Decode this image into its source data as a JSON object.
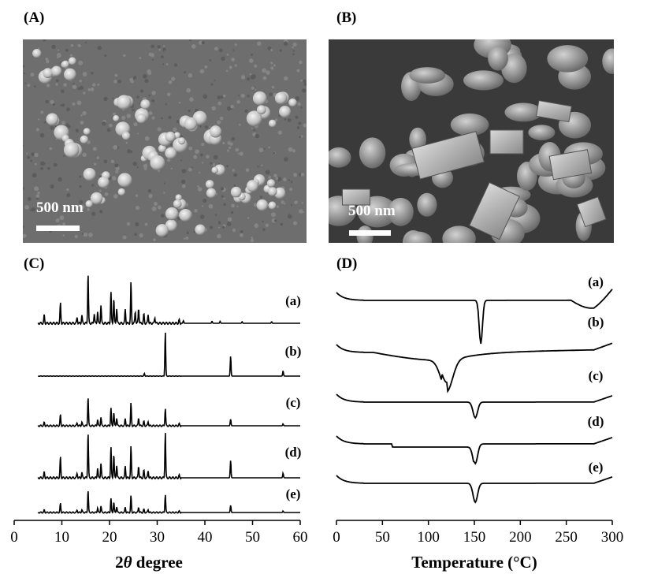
{
  "panels": {
    "A": {
      "label": "(A)",
      "scale_text": "500 nm"
    },
    "B": {
      "label": "(B)",
      "scale_text": "500 nm"
    },
    "C": {
      "label": "(C)"
    },
    "D": {
      "label": "(D)"
    }
  },
  "chart_data": [
    {
      "type": "line",
      "panel": "C",
      "xlabel_prefix": "2",
      "xlabel_italic": "θ",
      "xlabel_suffix": " degree",
      "ylabel": "",
      "xlim": [
        0,
        60
      ],
      "xticks": [
        0,
        10,
        20,
        30,
        40,
        50,
        60
      ],
      "grid": false,
      "series": [
        {
          "name": "(a)",
          "peaks": [
            [
              6.3,
              0.16
            ],
            [
              9.7,
              0.4
            ],
            [
              13.2,
              0.12
            ],
            [
              14.2,
              0.16
            ],
            [
              15.5,
              1.0
            ],
            [
              16.8,
              0.2
            ],
            [
              17.5,
              0.24
            ],
            [
              18.2,
              0.36
            ],
            [
              20.3,
              0.63
            ],
            [
              20.9,
              0.5
            ],
            [
              21.5,
              0.3
            ],
            [
              23.3,
              0.28
            ],
            [
              24.5,
              0.8
            ],
            [
              25.4,
              0.24
            ],
            [
              26.1,
              0.3
            ],
            [
              27.2,
              0.18
            ],
            [
              28.1,
              0.18
            ],
            [
              29.5,
              0.12
            ],
            [
              34.6,
              0.06
            ],
            [
              35.5,
              0.05
            ],
            [
              41.5,
              0.04
            ],
            [
              43.2,
              0.04
            ],
            [
              47.8,
              0.03
            ],
            [
              54.0,
              0.03
            ]
          ]
        },
        {
          "name": "(b)",
          "peaks": [
            [
              27.3,
              0.06
            ],
            [
              31.7,
              1.0
            ],
            [
              45.4,
              0.45
            ],
            [
              56.4,
              0.12
            ]
          ]
        },
        {
          "name": "(c)",
          "peaks": [
            [
              6.3,
              0.09
            ],
            [
              9.7,
              0.3
            ],
            [
              13.2,
              0.08
            ],
            [
              14.2,
              0.1
            ],
            [
              15.5,
              0.8
            ],
            [
              17.5,
              0.18
            ],
            [
              18.2,
              0.24
            ],
            [
              20.3,
              0.5
            ],
            [
              20.9,
              0.38
            ],
            [
              21.5,
              0.22
            ],
            [
              23.3,
              0.2
            ],
            [
              24.5,
              0.62
            ],
            [
              26.1,
              0.22
            ],
            [
              27.2,
              0.12
            ],
            [
              28.1,
              0.12
            ],
            [
              31.7,
              0.48
            ],
            [
              34.6,
              0.05
            ],
            [
              45.4,
              0.18
            ],
            [
              56.4,
              0.05
            ]
          ]
        },
        {
          "name": "(d)",
          "peaks": [
            [
              6.3,
              0.12
            ],
            [
              9.7,
              0.45
            ],
            [
              13.2,
              0.1
            ],
            [
              14.2,
              0.12
            ],
            [
              15.5,
              1.0
            ],
            [
              17.5,
              0.22
            ],
            [
              18.2,
              0.32
            ],
            [
              20.3,
              0.68
            ],
            [
              20.9,
              0.52
            ],
            [
              21.5,
              0.28
            ],
            [
              23.3,
              0.26
            ],
            [
              24.5,
              0.68
            ],
            [
              26.1,
              0.26
            ],
            [
              27.2,
              0.16
            ],
            [
              28.1,
              0.16
            ],
            [
              31.7,
              1.0
            ],
            [
              34.6,
              0.05
            ],
            [
              45.4,
              0.38
            ],
            [
              56.4,
              0.1
            ]
          ]
        },
        {
          "name": "(e)",
          "peaks": [
            [
              6.3,
              0.08
            ],
            [
              9.7,
              0.3
            ],
            [
              13.2,
              0.08
            ],
            [
              14.2,
              0.09
            ],
            [
              15.5,
              0.75
            ],
            [
              17.5,
              0.16
            ],
            [
              18.2,
              0.22
            ],
            [
              20.3,
              0.48
            ],
            [
              20.9,
              0.36
            ],
            [
              21.5,
              0.2
            ],
            [
              23.3,
              0.18
            ],
            [
              24.5,
              0.55
            ],
            [
              26.1,
              0.18
            ],
            [
              27.2,
              0.1
            ],
            [
              28.1,
              0.1
            ],
            [
              31.7,
              0.6
            ],
            [
              34.6,
              0.04
            ],
            [
              45.4,
              0.24
            ],
            [
              56.4,
              0.05
            ]
          ]
        }
      ]
    },
    {
      "type": "line",
      "panel": "D",
      "xlabel": "Temperature  (°C)",
      "ylabel": "",
      "xlim": [
        0,
        300
      ],
      "xticks": [
        0,
        50,
        100,
        150,
        200,
        250,
        300
      ],
      "grid": false,
      "series": [
        {
          "name": "(a)",
          "endo_peak_c": 157
        },
        {
          "name": "(b)",
          "endo_peak_c": 120
        },
        {
          "name": "(c)",
          "endo_peak_c": 151
        },
        {
          "name": "(d)",
          "endo_peak_c": 151
        },
        {
          "name": "(e)",
          "endo_peak_c": 151
        }
      ]
    }
  ]
}
